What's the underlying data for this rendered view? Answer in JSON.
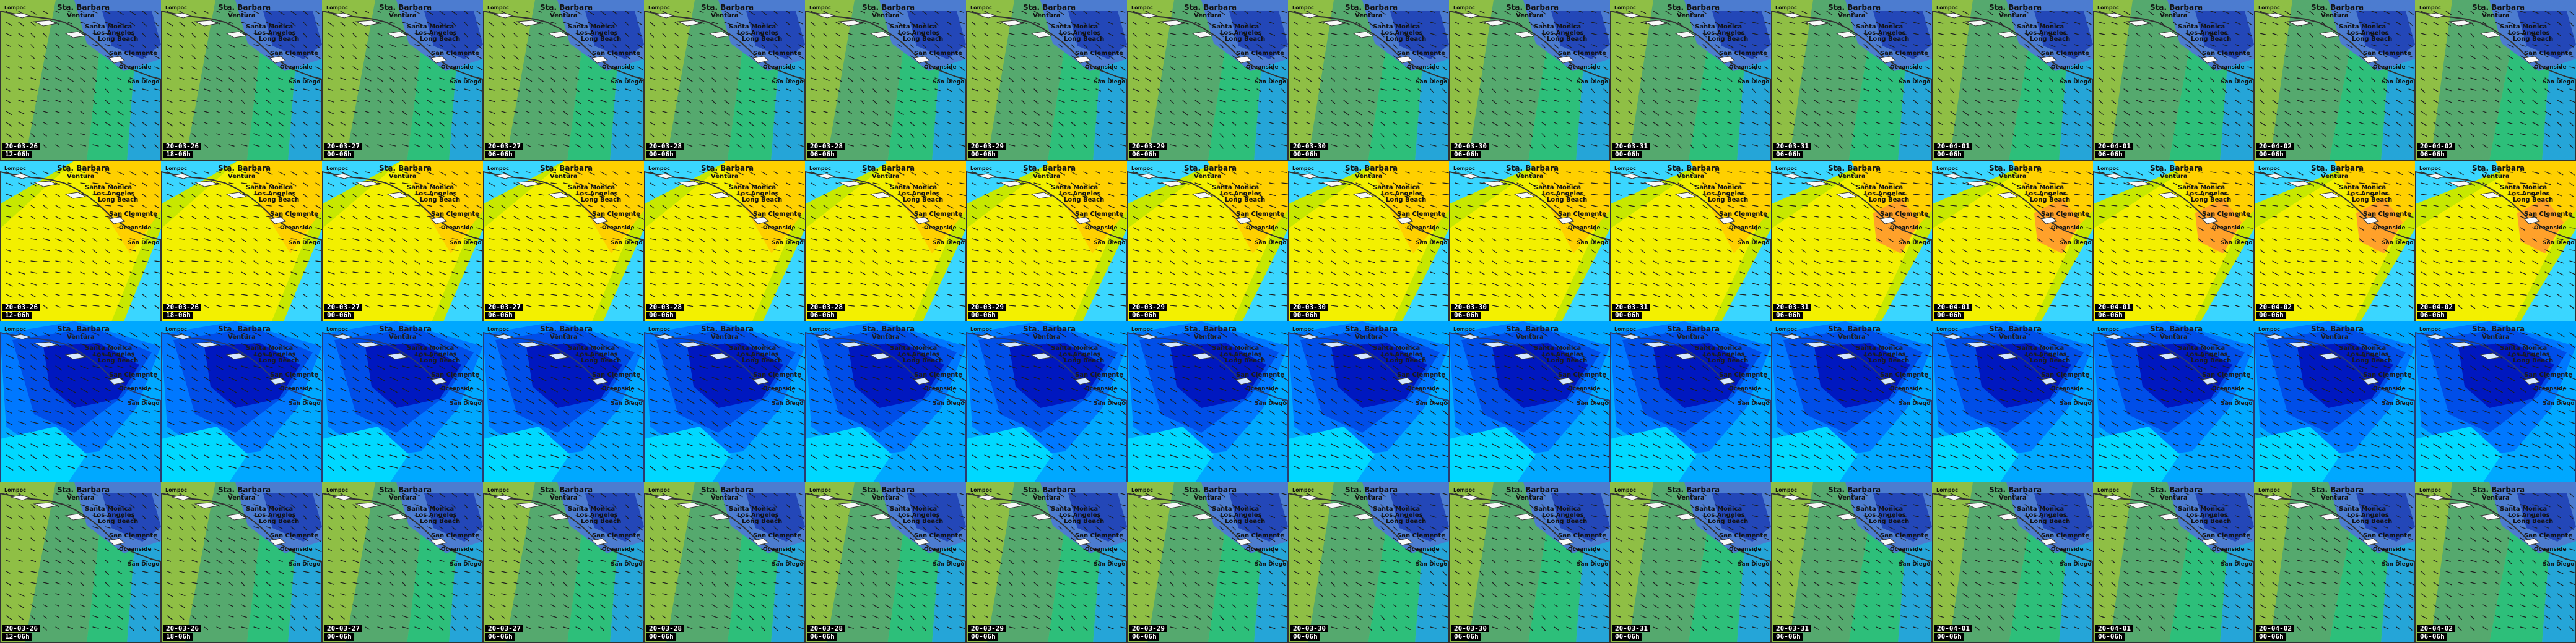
{
  "place_labels": [
    "Lompoc",
    "Sta. Barbara",
    "Ventura",
    "Santa Monica",
    "Los Angeles",
    "Long Beach",
    "San Clemente",
    "Oceanside",
    "San Diego"
  ],
  "rows": [
    {
      "id": "swell-map",
      "field_colors": [
        "#8fbf45",
        "#55a96e",
        "#2dbf7a",
        "#25a5d8",
        "#1aa0e0",
        "#4c7cd0",
        "#2347b8"
      ],
      "tiles": [
        {
          "date": "20-03-26",
          "hour": "12-06h"
        },
        {
          "date": "20-03-26",
          "hour": "18-06h"
        },
        {
          "date": "20-03-27",
          "hour": "00-06h"
        },
        {
          "date": "20-03-27",
          "hour": "06-06h"
        },
        {
          "date": "20-03-28",
          "hour": "00-06h"
        },
        {
          "date": "20-03-28",
          "hour": "06-06h"
        },
        {
          "date": "20-03-29",
          "hour": "00-06h"
        },
        {
          "date": "20-03-29",
          "hour": "06-06h"
        },
        {
          "date": "20-03-30",
          "hour": "00-06h"
        },
        {
          "date": "20-03-30",
          "hour": "06-06h"
        },
        {
          "date": "20-03-31",
          "hour": "00-06h"
        },
        {
          "date": "20-03-31",
          "hour": "06-06h"
        },
        {
          "date": "20-04-01",
          "hour": "00-06h"
        },
        {
          "date": "20-04-01",
          "hour": "06-06h"
        },
        {
          "date": "20-04-02",
          "hour": "00-06h"
        },
        {
          "date": "20-04-02",
          "hour": "06-06h"
        }
      ]
    },
    {
      "id": "wind-map",
      "field_colors": [
        "#3ad6ff",
        "#22c45c",
        "#c7e800",
        "#f3f000",
        "#ffd000",
        "#ffa12a"
      ],
      "tiles": [
        {
          "date": "20-03-26",
          "hour": "12-06h"
        },
        {
          "date": "20-03-26",
          "hour": "18-06h"
        },
        {
          "date": "20-03-27",
          "hour": "00-06h"
        },
        {
          "date": "20-03-27",
          "hour": "06-06h"
        },
        {
          "date": "20-03-28",
          "hour": "00-06h"
        },
        {
          "date": "20-03-28",
          "hour": "06-06h"
        },
        {
          "date": "20-03-29",
          "hour": "00-06h"
        },
        {
          "date": "20-03-29",
          "hour": "06-06h"
        },
        {
          "date": "20-03-30",
          "hour": "00-06h"
        },
        {
          "date": "20-03-30",
          "hour": "06-06h"
        },
        {
          "date": "20-03-31",
          "hour": "00-06h"
        },
        {
          "date": "20-03-31",
          "hour": "06-06h"
        },
        {
          "date": "20-04-01",
          "hour": "00-06h"
        },
        {
          "date": "20-04-01",
          "hour": "06-06h"
        },
        {
          "date": "20-04-02",
          "hour": "00-06h"
        },
        {
          "date": "20-04-02",
          "hour": "06-06h"
        }
      ]
    },
    {
      "id": "current-map",
      "field_colors": [
        "#00d8ff",
        "#00a8ff",
        "#0078ff",
        "#004ee8",
        "#0018c0"
      ],
      "tiles": [
        {
          "date": "",
          "hour": ""
        },
        {
          "date": "",
          "hour": ""
        },
        {
          "date": "",
          "hour": ""
        },
        {
          "date": "",
          "hour": ""
        },
        {
          "date": "",
          "hour": ""
        },
        {
          "date": "",
          "hour": ""
        },
        {
          "date": "",
          "hour": ""
        },
        {
          "date": "",
          "hour": ""
        },
        {
          "date": "",
          "hour": ""
        },
        {
          "date": "",
          "hour": ""
        },
        {
          "date": "",
          "hour": ""
        },
        {
          "date": "",
          "hour": ""
        },
        {
          "date": "",
          "hour": ""
        },
        {
          "date": "",
          "hour": ""
        },
        {
          "date": "",
          "hour": ""
        },
        {
          "date": "",
          "hour": ""
        }
      ]
    },
    {
      "id": "tide-map",
      "field_colors": [
        "#8fbf45",
        "#55a96e",
        "#2dbf7a",
        "#25a5d8",
        "#1aa0e0",
        "#4c7cd0",
        "#2347b8"
      ],
      "tiles": [
        {
          "date": "20-03-26",
          "hour": "12-06h"
        },
        {
          "date": "20-03-26",
          "hour": "18-06h"
        },
        {
          "date": "20-03-27",
          "hour": "00-06h"
        },
        {
          "date": "20-03-27",
          "hour": "06-06h"
        },
        {
          "date": "20-03-28",
          "hour": "00-06h"
        },
        {
          "date": "20-03-28",
          "hour": "06-06h"
        },
        {
          "date": "20-03-29",
          "hour": "00-06h"
        },
        {
          "date": "20-03-29",
          "hour": "06-06h"
        },
        {
          "date": "20-03-30",
          "hour": "00-06h"
        },
        {
          "date": "20-03-30",
          "hour": "06-06h"
        },
        {
          "date": "20-03-31",
          "hour": "00-06h"
        },
        {
          "date": "20-03-31",
          "hour": "06-06h"
        },
        {
          "date": "20-04-01",
          "hour": "00-06h"
        },
        {
          "date": "20-04-01",
          "hour": "06-06h"
        },
        {
          "date": "20-04-02",
          "hour": "00-06h"
        },
        {
          "date": "20-04-02",
          "hour": "06-06h"
        }
      ]
    }
  ]
}
